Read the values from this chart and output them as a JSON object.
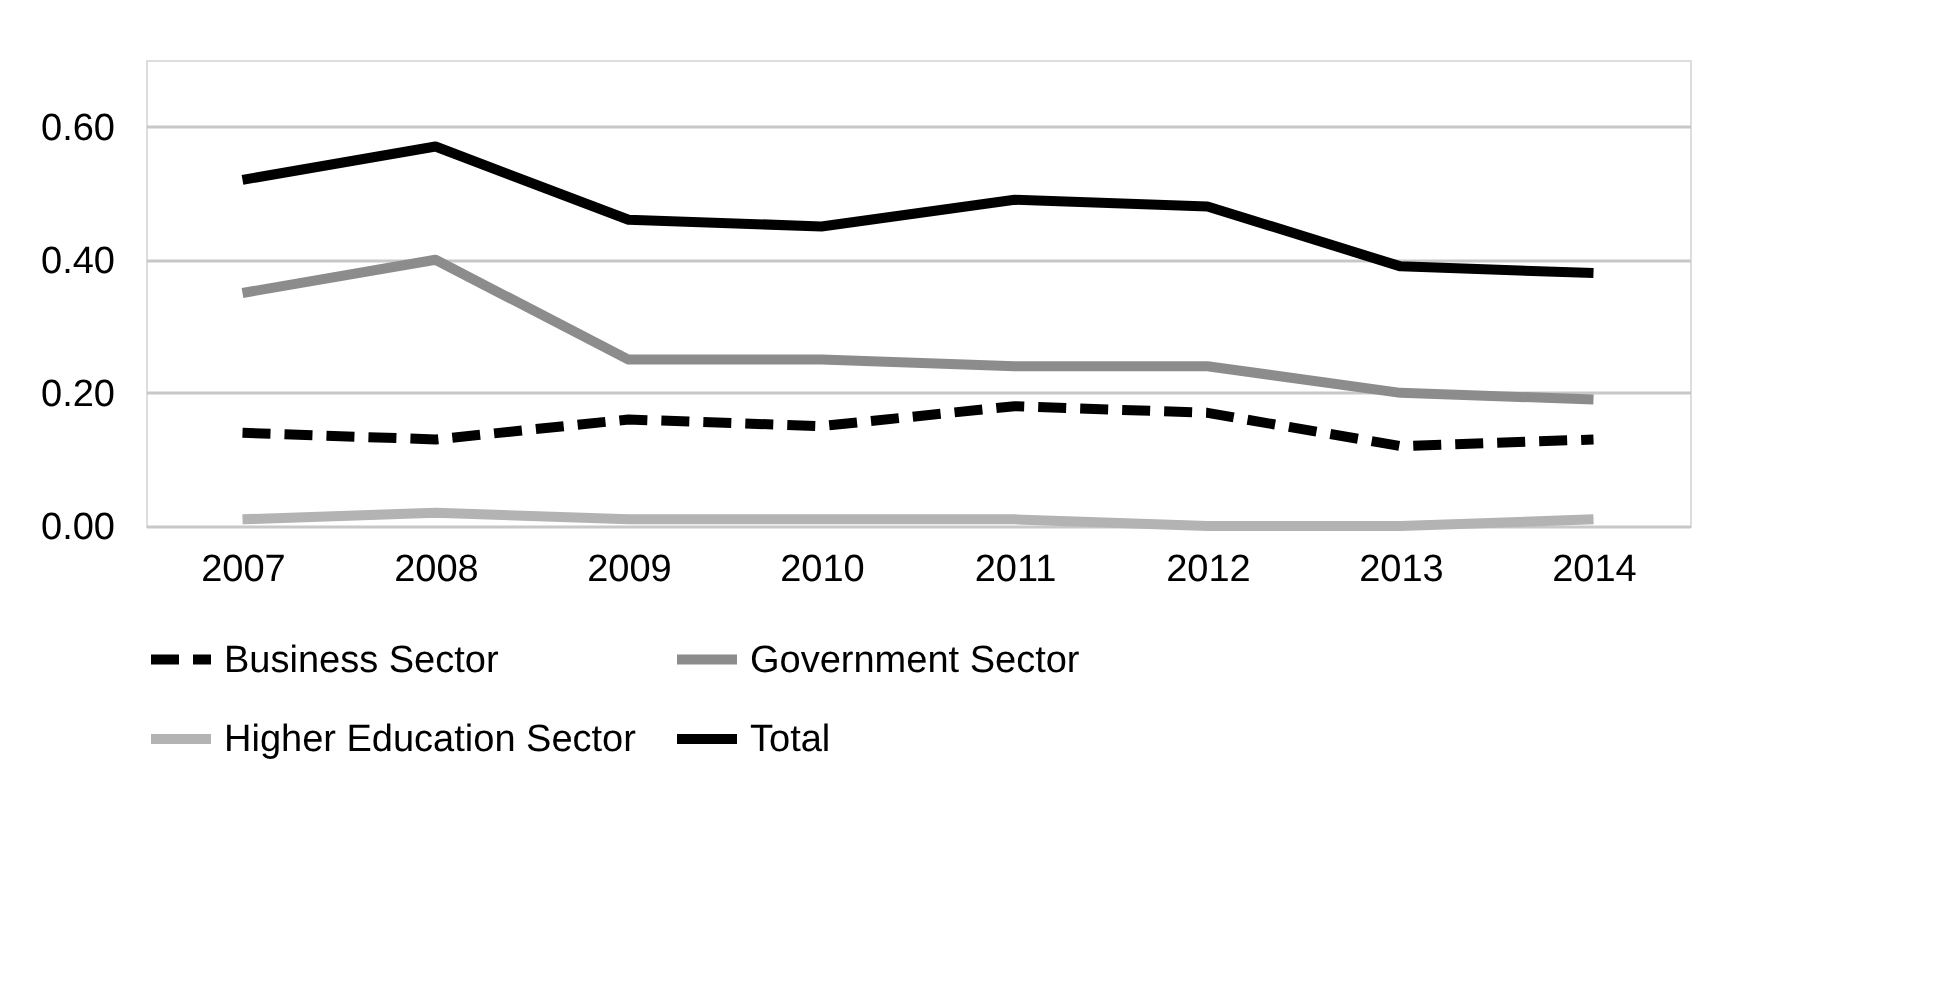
{
  "chart_data": {
    "type": "line",
    "categories": [
      "2007",
      "2008",
      "2009",
      "2010",
      "2011",
      "2012",
      "2013",
      "2014"
    ],
    "series": [
      {
        "name": "Business Sector",
        "color": "#000000",
        "line_style": "dashed",
        "values": [
          0.14,
          0.13,
          0.16,
          0.15,
          0.18,
          0.17,
          0.12,
          0.13
        ]
      },
      {
        "name": "Government Sector",
        "color": "#8c8c8c",
        "line_style": "solid",
        "values": [
          0.35,
          0.4,
          0.25,
          0.25,
          0.24,
          0.24,
          0.2,
          0.19
        ]
      },
      {
        "name": "Higher Education Sector",
        "color": "#b3b3b3",
        "line_style": "solid",
        "values": [
          0.01,
          0.02,
          0.01,
          0.01,
          0.01,
          0.0,
          0.0,
          0.01
        ]
      },
      {
        "name": "Total",
        "color": "#000000",
        "line_style": "solid",
        "values": [
          0.52,
          0.57,
          0.46,
          0.45,
          0.49,
          0.48,
          0.39,
          0.38
        ]
      }
    ],
    "ylim": [
      0,
      0.7
    ],
    "yticks": [
      {
        "value": 0,
        "label": "0.00"
      },
      {
        "value": 0.2,
        "label": "0.20"
      },
      {
        "value": 0.4,
        "label": "0.40"
      },
      {
        "value": 0.6,
        "label": "0.60"
      }
    ],
    "grid": "y",
    "legend": "bottom",
    "marker": "none"
  }
}
